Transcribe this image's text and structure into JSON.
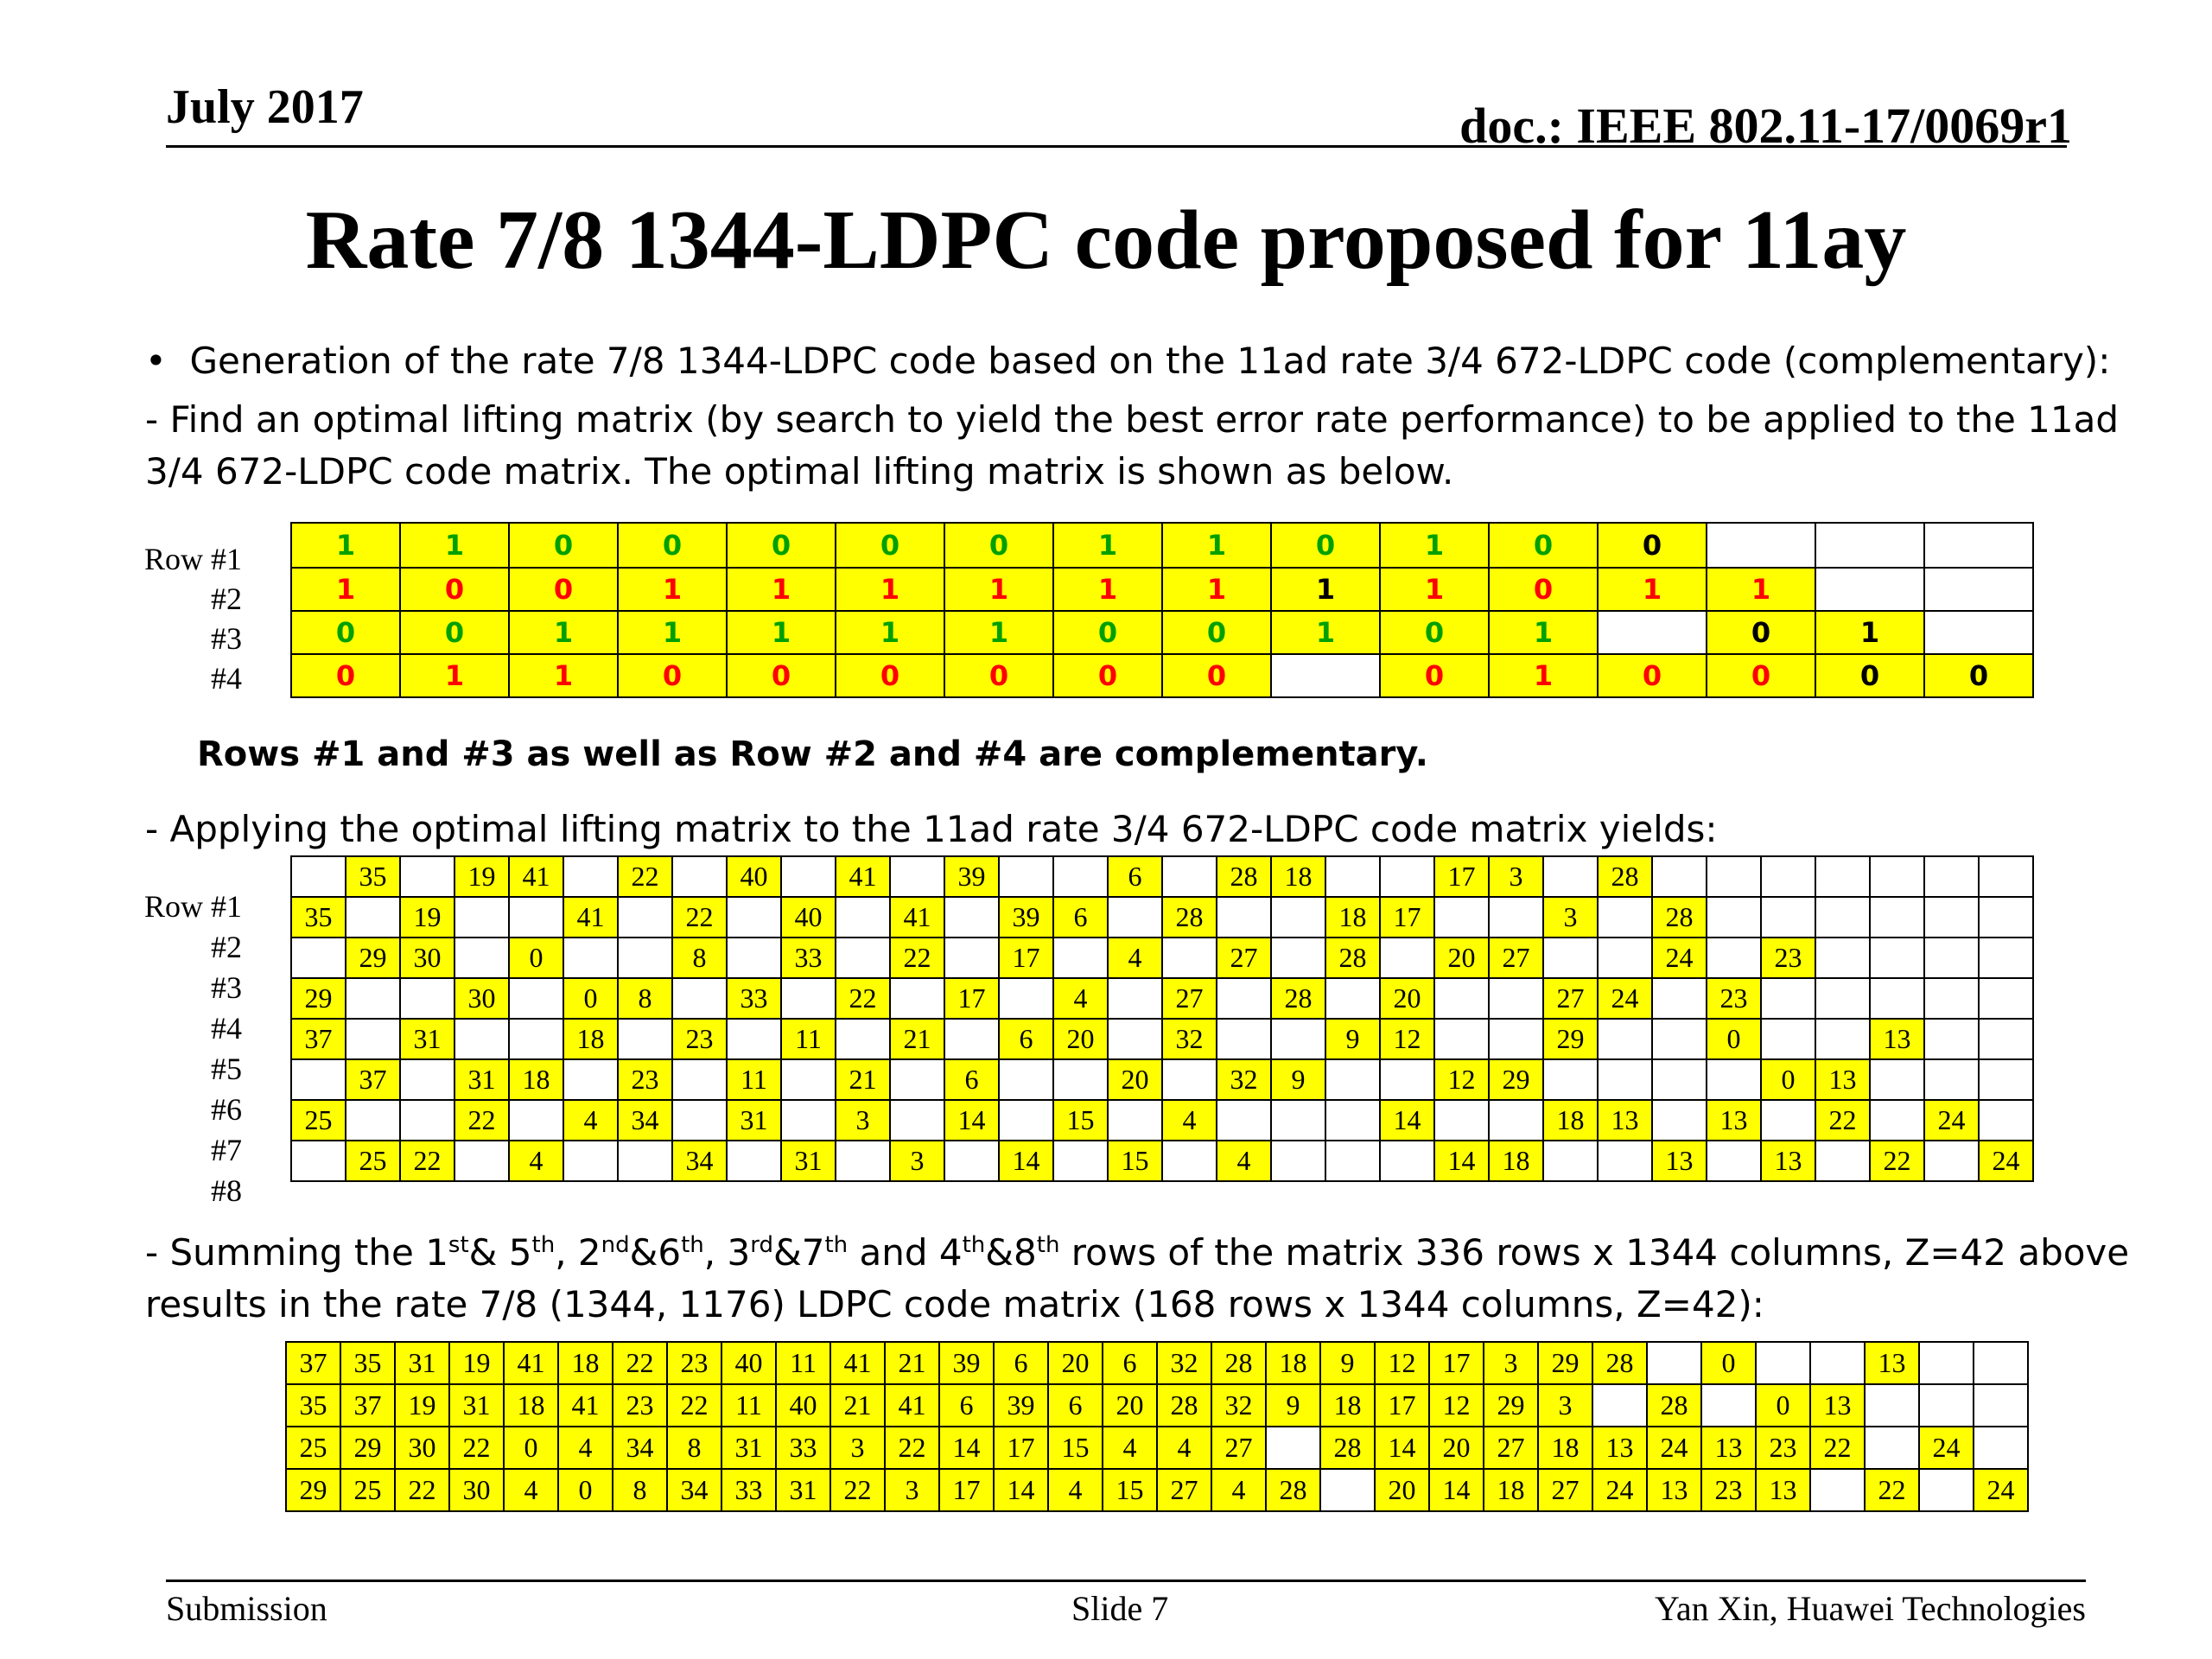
{
  "header": {
    "date": "July 2017",
    "doc": "doc.: IEEE 802.11-17/0069r1"
  },
  "title": "Rate 7/8 1344-LDPC code proposed for 11ay",
  "bullets": {
    "b1": "Generation of the rate 7/8  1344-LDPC code based on the 11ad rate 3/4 672-LDPC code (complementary):",
    "b2_line1": "-   Find an optimal lifting matrix (by search to yield the best error rate performance) to be applied to the 11ad",
    "b2_line2": "3/4 672-LDPC code matrix. The optimal lifting matrix is shown as below.",
    "note": "Rows #1 and #3 as well as Row #2 and #4 are complementary.",
    "apply": "-  Applying the optimal lifting matrix to the 11ad rate 3/4 672-LDPC code matrix yields:",
    "sum_pre": "- Summing the 1",
    "sum_s1": "st",
    "sum_t1": "& 5",
    "sum_s2": "th",
    "sum_t2": ", 2",
    "sum_s3": "nd",
    "sum_t3": "&6",
    "sum_s4": "th",
    "sum_t4": ", 3",
    "sum_s5": "rd",
    "sum_t5": "&7",
    "sum_s6": "th",
    "sum_t6": " and 4",
    "sum_s7": "th",
    "sum_t7": "&8",
    "sum_s8": "th",
    "sum_t8": " rows of the matrix 336 rows x 1344 columns, Z=42 above",
    "sum_line2": "results in the rate 7/8 (1344,  1176) LDPC code matrix (168 rows x 1344 columns, Z=42):"
  },
  "lifting": {
    "labels": [
      "Row #1",
      "#2",
      "#3",
      "#4"
    ],
    "colors": {
      "green": "#00a000",
      "red": "#ff0000",
      "black": "#000000",
      "yellow": "#ffff00"
    },
    "rows": [
      [
        [
          "1",
          "g"
        ],
        [
          "1",
          "g"
        ],
        [
          "0",
          "g"
        ],
        [
          "0",
          "g"
        ],
        [
          "0",
          "g"
        ],
        [
          "0",
          "g"
        ],
        [
          "0",
          "g"
        ],
        [
          "1",
          "g"
        ],
        [
          "1",
          "g"
        ],
        [
          "0",
          "g"
        ],
        [
          "1",
          "g"
        ],
        [
          "0",
          "g"
        ],
        [
          "0",
          "k"
        ],
        [
          "",
          "w"
        ],
        [
          "",
          "w"
        ],
        [
          "",
          "w"
        ]
      ],
      [
        [
          "1",
          "r"
        ],
        [
          "0",
          "r"
        ],
        [
          "0",
          "r"
        ],
        [
          "1",
          "r"
        ],
        [
          "1",
          "r"
        ],
        [
          "1",
          "r"
        ],
        [
          "1",
          "r"
        ],
        [
          "1",
          "r"
        ],
        [
          "1",
          "r"
        ],
        [
          "1",
          "k"
        ],
        [
          "1",
          "r"
        ],
        [
          "0",
          "r"
        ],
        [
          "1",
          "r"
        ],
        [
          "1",
          "r"
        ],
        [
          "",
          "w"
        ],
        [
          "",
          "w"
        ]
      ],
      [
        [
          "0",
          "g"
        ],
        [
          "0",
          "g"
        ],
        [
          "1",
          "g"
        ],
        [
          "1",
          "g"
        ],
        [
          "1",
          "g"
        ],
        [
          "1",
          "g"
        ],
        [
          "1",
          "g"
        ],
        [
          "0",
          "g"
        ],
        [
          "0",
          "g"
        ],
        [
          "1",
          "g"
        ],
        [
          "0",
          "g"
        ],
        [
          "1",
          "g"
        ],
        [
          "",
          "w"
        ],
        [
          "0",
          "k"
        ],
        [
          "1",
          "k"
        ],
        [
          "",
          "w"
        ]
      ],
      [
        [
          "0",
          "r"
        ],
        [
          "1",
          "r"
        ],
        [
          "1",
          "r"
        ],
        [
          "0",
          "r"
        ],
        [
          "0",
          "r"
        ],
        [
          "0",
          "r"
        ],
        [
          "0",
          "r"
        ],
        [
          "0",
          "r"
        ],
        [
          "0",
          "r"
        ],
        [
          "",
          "w"
        ],
        [
          "0",
          "r"
        ],
        [
          "1",
          "r"
        ],
        [
          "0",
          "r"
        ],
        [
          "0",
          "r"
        ],
        [
          "0",
          "k"
        ],
        [
          "0",
          "k"
        ]
      ]
    ]
  },
  "expanded": {
    "labels": [
      "Row #1",
      "#2",
      "#3",
      "#4",
      "#5",
      "#6",
      "#7",
      "#8"
    ],
    "rows": [
      [
        "",
        "35",
        "",
        "19",
        "41",
        "",
        "22",
        "",
        "40",
        "",
        "41",
        "",
        "39",
        "",
        "",
        "6",
        "",
        "28",
        "18",
        "",
        "",
        "17",
        "3",
        "",
        "28",
        "",
        "",
        "",
        "",
        "",
        "",
        ""
      ],
      [
        "35",
        "",
        "19",
        "",
        "",
        "41",
        "",
        "22",
        "",
        "40",
        "",
        "41",
        "",
        "39",
        "6",
        "",
        "28",
        "",
        "",
        "18",
        "17",
        "",
        "",
        "3",
        "",
        "28",
        "",
        "",
        "",
        "",
        "",
        ""
      ],
      [
        "",
        "29",
        "30",
        "",
        "0",
        "",
        "",
        "8",
        "",
        "33",
        "",
        "22",
        "",
        "17",
        "",
        "4",
        "",
        "27",
        "",
        "28",
        "",
        "20",
        "27",
        "",
        "",
        "24",
        "",
        "23",
        "",
        "",
        "",
        ""
      ],
      [
        "29",
        "",
        "",
        "30",
        "",
        "0",
        "8",
        "",
        "33",
        "",
        "22",
        "",
        "17",
        "",
        "4",
        "",
        "27",
        "",
        "28",
        "",
        "20",
        "",
        "",
        "27",
        "24",
        "",
        "23",
        "",
        "",
        "",
        "",
        ""
      ],
      [
        "37",
        "",
        "31",
        "",
        "",
        "18",
        "",
        "23",
        "",
        "11",
        "",
        "21",
        "",
        "6",
        "20",
        "",
        "32",
        "",
        "",
        "9",
        "12",
        "",
        "",
        "29",
        "",
        "",
        "0",
        "",
        "",
        "13",
        "",
        ""
      ],
      [
        "",
        "37",
        "",
        "31",
        "18",
        "",
        "23",
        "",
        "11",
        "",
        "21",
        "",
        "6",
        "",
        "",
        "20",
        "",
        "32",
        "9",
        "",
        "",
        "12",
        "29",
        "",
        "",
        "",
        "",
        "0",
        "13",
        "",
        "",
        ""
      ],
      [
        "25",
        "",
        "",
        "22",
        "",
        "4",
        "34",
        "",
        "31",
        "",
        "3",
        "",
        "14",
        "",
        "15",
        "",
        "4",
        "",
        "",
        "",
        "14",
        "",
        "",
        "18",
        "13",
        "",
        "13",
        "",
        "22",
        "",
        "24",
        ""
      ],
      [
        "",
        "25",
        "22",
        "",
        "4",
        "",
        "",
        "34",
        "",
        "31",
        "",
        "3",
        "",
        "14",
        "",
        "15",
        "",
        "4",
        "",
        "",
        "",
        "14",
        "18",
        "",
        "",
        "13",
        "",
        "13",
        "",
        "22",
        "",
        "24"
      ]
    ]
  },
  "summed": {
    "rows": [
      [
        "37",
        "35",
        "31",
        "19",
        "41",
        "18",
        "22",
        "23",
        "40",
        "11",
        "41",
        "21",
        "39",
        "6",
        "20",
        "6",
        "32",
        "28",
        "18",
        "9",
        "12",
        "17",
        "3",
        "29",
        "28",
        "",
        "0",
        "",
        "",
        "13",
        "",
        ""
      ],
      [
        "35",
        "37",
        "19",
        "31",
        "18",
        "41",
        "23",
        "22",
        "11",
        "40",
        "21",
        "41",
        "6",
        "39",
        "6",
        "20",
        "28",
        "32",
        "9",
        "18",
        "17",
        "12",
        "29",
        "3",
        "",
        "28",
        "",
        "0",
        "13",
        "",
        "",
        ""
      ],
      [
        "25",
        "29",
        "30",
        "22",
        "0",
        "4",
        "34",
        "8",
        "31",
        "33",
        "3",
        "22",
        "14",
        "17",
        "15",
        "4",
        "4",
        "27",
        "",
        "28",
        "14",
        "20",
        "27",
        "18",
        "13",
        "24",
        "13",
        "23",
        "22",
        "",
        "24",
        ""
      ],
      [
        "29",
        "25",
        "22",
        "30",
        "4",
        "0",
        "8",
        "34",
        "33",
        "31",
        "22",
        "3",
        "17",
        "14",
        "4",
        "15",
        "27",
        "4",
        "28",
        "",
        "20",
        "14",
        "18",
        "27",
        "24",
        "13",
        "23",
        "13",
        "",
        "22",
        "",
        "24"
      ]
    ]
  },
  "footer": {
    "left": "Submission",
    "center": "Slide 7",
    "right": "Yan Xin, Huawei Technologies"
  }
}
